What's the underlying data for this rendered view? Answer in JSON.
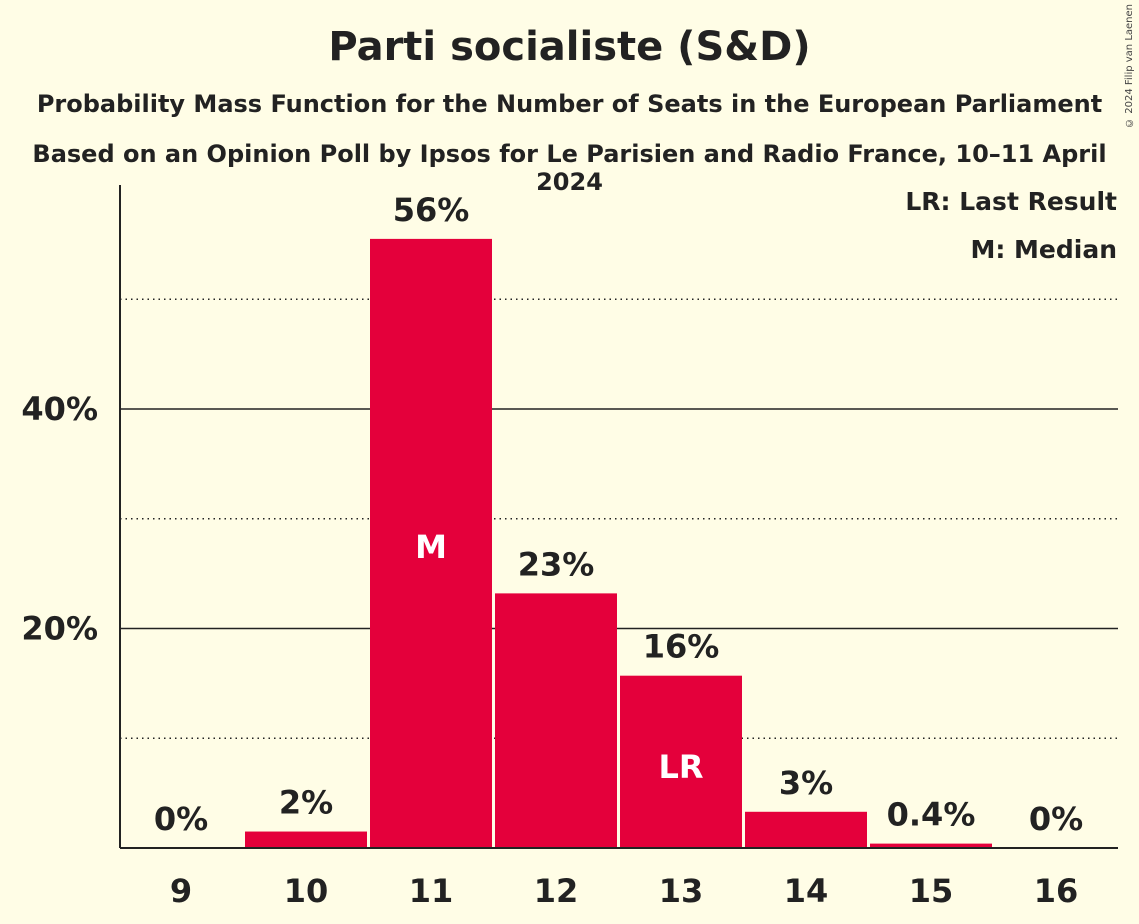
{
  "title": "Parti socialiste (S&D)",
  "subtitle": "Probability Mass Function for the Number of Seats in the European Parliament",
  "subtitle2": "Based on an Opinion Poll by Ipsos for Le Parisien and Radio France, 10–11 April 2024",
  "copyright": "© 2024 Filip van Laenen",
  "colors": {
    "bar": "#e4003b",
    "background": "#fffde6",
    "text": "#222222"
  },
  "chart_data": {
    "type": "bar",
    "categories": [
      "9",
      "10",
      "11",
      "12",
      "13",
      "14",
      "15",
      "16"
    ],
    "values": [
      0,
      1.5,
      55.5,
      23.2,
      15.7,
      3.3,
      0.4,
      0
    ],
    "data_labels": [
      "0%",
      "2%",
      "56%",
      "23%",
      "16%",
      "3%",
      "0.4%",
      "0%"
    ],
    "bar_annotations": {
      "11": "M",
      "13": "LR"
    },
    "ylim": [
      0,
      60
    ],
    "yticks": [
      {
        "value": 20,
        "label": "20%"
      },
      {
        "value": 40,
        "label": "40%"
      }
    ],
    "minor_gridlines": [
      10,
      30,
      50
    ],
    "legend": [
      "LR: Last Result",
      "M: Median"
    ],
    "legend_position": "top-right"
  }
}
